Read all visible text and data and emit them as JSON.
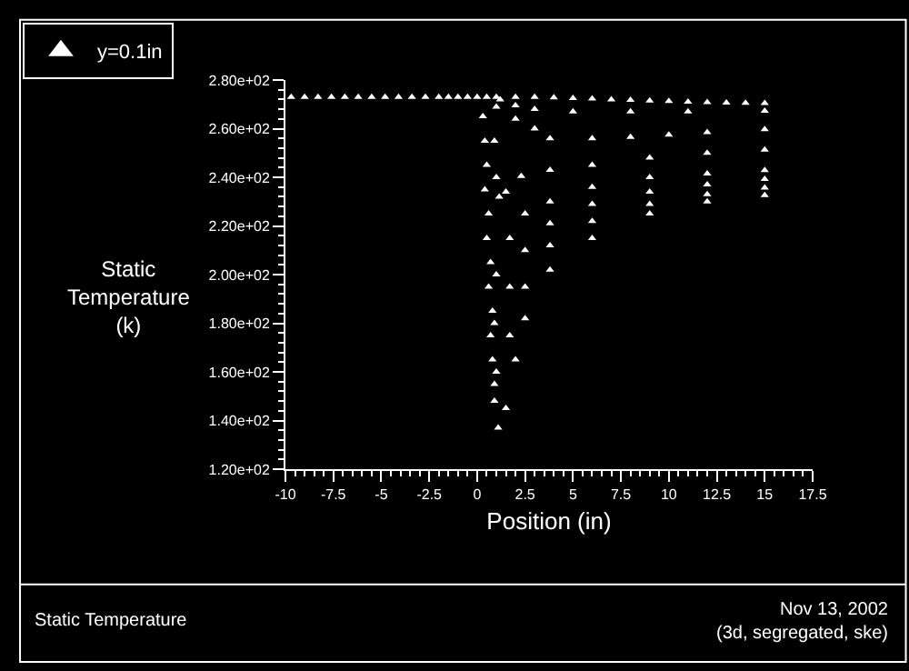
{
  "chart_data": {
    "type": "scatter",
    "ylabel": "Static Temperature (k)",
    "xlabel": "Position (in)",
    "xlim": [
      -10,
      17.5
    ],
    "xticks": [
      -10,
      -7.5,
      -5,
      -2.5,
      0,
      2.5,
      5,
      7.5,
      10,
      12.5,
      15,
      17.5
    ],
    "ylim": [
      120,
      280
    ],
    "yticks": [
      {
        "value": 120,
        "label": "1.20e+02"
      },
      {
        "value": 140,
        "label": "1.40e+02"
      },
      {
        "value": 160,
        "label": "1.60e+02"
      },
      {
        "value": 180,
        "label": "1.80e+02"
      },
      {
        "value": 200,
        "label": "2.00e+02"
      },
      {
        "value": 220,
        "label": "2.20e+02"
      },
      {
        "value": 240,
        "label": "2.40e+02"
      },
      {
        "value": 260,
        "label": "2.60e+02"
      },
      {
        "value": 280,
        "label": "2.80e+02"
      }
    ],
    "grid": false,
    "legend": "top left",
    "marker": "triangle",
    "annotations": [
      "Static Temperature",
      "Nov 13, 2002",
      "(3d, segregated, ske)"
    ],
    "series": [
      {
        "name": "y=0.1in",
        "color": "#ffffff",
        "x": [
          -9.7,
          -9,
          -8.3,
          -7.6,
          -6.9,
          -6.2,
          -5.5,
          -4.8,
          -4.1,
          -3.4,
          -2.7,
          -2,
          -1.5,
          -1,
          -0.5,
          0,
          0.5,
          1,
          2,
          3,
          4,
          5,
          6,
          7,
          8,
          9,
          10,
          11,
          12,
          13,
          14,
          15,
          1.2,
          2,
          3,
          5,
          8,
          11,
          15,
          1,
          2,
          3,
          3.8,
          6,
          8,
          10,
          12,
          15,
          0.9,
          1,
          1.15,
          1.5,
          2.3,
          3.8,
          6,
          9,
          12,
          15,
          1,
          1.7,
          2.5,
          3.8,
          6,
          9,
          12,
          15,
          0.9,
          1.7,
          2.5,
          3.8,
          6,
          9,
          12,
          15,
          1,
          1.7,
          2.5,
          3.8,
          6,
          9,
          12,
          15,
          1.1,
          1.5,
          2,
          2.5,
          3.8,
          6,
          9,
          12,
          15,
          0.3,
          0.4,
          0.5,
          0.4,
          0.6,
          0.5,
          0.7,
          0.6,
          0.8,
          0.7,
          0.8,
          0.9,
          0.9
        ],
        "values": [
          273,
          273,
          273,
          273,
          273,
          273,
          273,
          273,
          273,
          273,
          273,
          273,
          273,
          273,
          273,
          273,
          273,
          273,
          273,
          273,
          272.8,
          272.5,
          272.3,
          272,
          271.8,
          271.5,
          271.3,
          271,
          270.8,
          270.7,
          270.6,
          270.5,
          272,
          269.5,
          268,
          267,
          267,
          267,
          267.3,
          269,
          264,
          260,
          256,
          256,
          256.5,
          257.5,
          258.5,
          259.7,
          255,
          240,
          232,
          234,
          240.5,
          243,
          245,
          248,
          250,
          251.3,
          200,
          215,
          225,
          230,
          236,
          240,
          241.5,
          242.9,
          180,
          195,
          210,
          221,
          229,
          234,
          237,
          239.3,
          160,
          175,
          195,
          212,
          222,
          229,
          233,
          235.7,
          137,
          145,
          165,
          182,
          202,
          215,
          225,
          230,
          232.6,
          265,
          255,
          245,
          235,
          225,
          215,
          205,
          195,
          185,
          175,
          165,
          155,
          148
        ]
      }
    ]
  }
}
